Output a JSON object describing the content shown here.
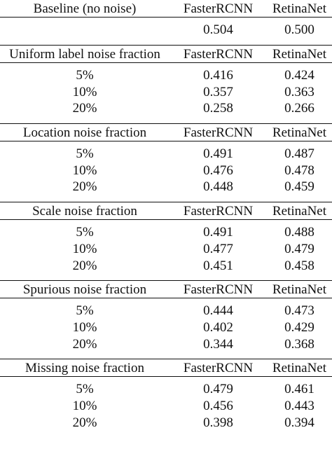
{
  "columns": {
    "model_a": "FasterRCNN",
    "model_b": "RetinaNet"
  },
  "sections": [
    {
      "title": "Baseline (no noise)",
      "rows": [
        {
          "label": "",
          "a": "0.504",
          "b": "0.500"
        }
      ]
    },
    {
      "title": "Uniform label noise fraction",
      "rows": [
        {
          "label": "5%",
          "a": "0.416",
          "b": "0.424"
        },
        {
          "label": "10%",
          "a": "0.357",
          "b": "0.363"
        },
        {
          "label": "20%",
          "a": "0.258",
          "b": "0.266"
        }
      ]
    },
    {
      "title": "Location noise fraction",
      "rows": [
        {
          "label": "5%",
          "a": "0.491",
          "b": "0.487"
        },
        {
          "label": "10%",
          "a": "0.476",
          "b": "0.478"
        },
        {
          "label": "20%",
          "a": "0.448",
          "b": "0.459"
        }
      ]
    },
    {
      "title": "Scale noise fraction",
      "rows": [
        {
          "label": "5%",
          "a": "0.491",
          "b": "0.488"
        },
        {
          "label": "10%",
          "a": "0.477",
          "b": "0.479"
        },
        {
          "label": "20%",
          "a": "0.451",
          "b": "0.458"
        }
      ]
    },
    {
      "title": "Spurious noise fraction",
      "rows": [
        {
          "label": "5%",
          "a": "0.444",
          "b": "0.473"
        },
        {
          "label": "10%",
          "a": "0.402",
          "b": "0.429"
        },
        {
          "label": "20%",
          "a": "0.344",
          "b": "0.368"
        }
      ]
    },
    {
      "title": "Missing noise fraction",
      "rows": [
        {
          "label": "5%",
          "a": "0.479",
          "b": "0.461"
        },
        {
          "label": "10%",
          "a": "0.456",
          "b": "0.443"
        },
        {
          "label": "20%",
          "a": "0.398",
          "b": "0.394"
        }
      ]
    }
  ]
}
